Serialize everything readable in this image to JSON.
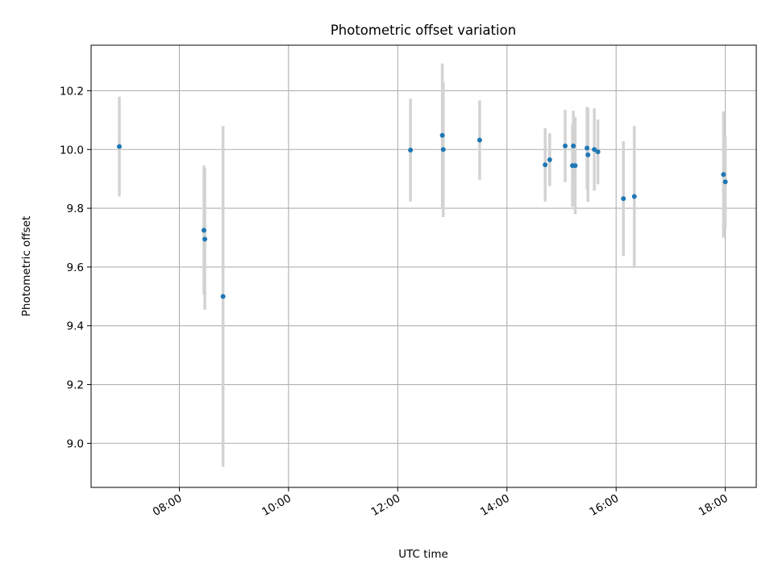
{
  "chart_data": {
    "type": "scatter",
    "title": "Photometric offset variation",
    "xlabel": "UTC time",
    "ylabel": "Photometric offset",
    "xlim": [
      "06:23",
      "18:34"
    ],
    "ylim": [
      8.85,
      10.355
    ],
    "grid": true,
    "x_ticks": [
      "08:00",
      "10:00",
      "12:00",
      "14:00",
      "16:00",
      "18:00"
    ],
    "y_ticks": [
      "9.0",
      "9.2",
      "9.4",
      "9.6",
      "9.8",
      "10.0",
      "10.2"
    ],
    "colors": {
      "points": "#1f77b4",
      "errorbars": "#d3d3d3",
      "grid": "#b0b0b0"
    },
    "series": [
      {
        "points": [
          {
            "x": "06:54",
            "y": 10.01,
            "err": 0.17
          },
          {
            "x": "08:27",
            "y": 9.725,
            "err": 0.22
          },
          {
            "x": "08:28",
            "y": 9.695,
            "err": 0.24
          },
          {
            "x": "08:48",
            "y": 9.5,
            "err": 0.58
          },
          {
            "x": "12:14",
            "y": 9.998,
            "err": 0.175
          },
          {
            "x": "12:49",
            "y": 10.048,
            "err": 0.245
          },
          {
            "x": "12:50",
            "y": 10.0,
            "err": 0.23
          },
          {
            "x": "13:30",
            "y": 10.032,
            "err": 0.135
          },
          {
            "x": "14:42",
            "y": 9.948,
            "err": 0.125
          },
          {
            "x": "14:47",
            "y": 9.965,
            "err": 0.09
          },
          {
            "x": "15:04",
            "y": 10.012,
            "err": 0.123
          },
          {
            "x": "15:12",
            "y": 9.945,
            "err": 0.14
          },
          {
            "x": "15:13",
            "y": 10.012,
            "err": 0.12
          },
          {
            "x": "15:15",
            "y": 9.945,
            "err": 0.165
          },
          {
            "x": "15:28",
            "y": 10.005,
            "err": 0.14
          },
          {
            "x": "15:29",
            "y": 9.982,
            "err": 0.16
          },
          {
            "x": "15:36",
            "y": 10.0,
            "err": 0.14
          },
          {
            "x": "15:40",
            "y": 9.992,
            "err": 0.11
          },
          {
            "x": "16:08",
            "y": 9.833,
            "err": 0.195
          },
          {
            "x": "16:20",
            "y": 9.84,
            "err": 0.24
          },
          {
            "x": "17:58",
            "y": 9.915,
            "err": 0.215
          },
          {
            "x": "18:00",
            "y": 9.89,
            "err": 0.155
          }
        ]
      }
    ]
  }
}
